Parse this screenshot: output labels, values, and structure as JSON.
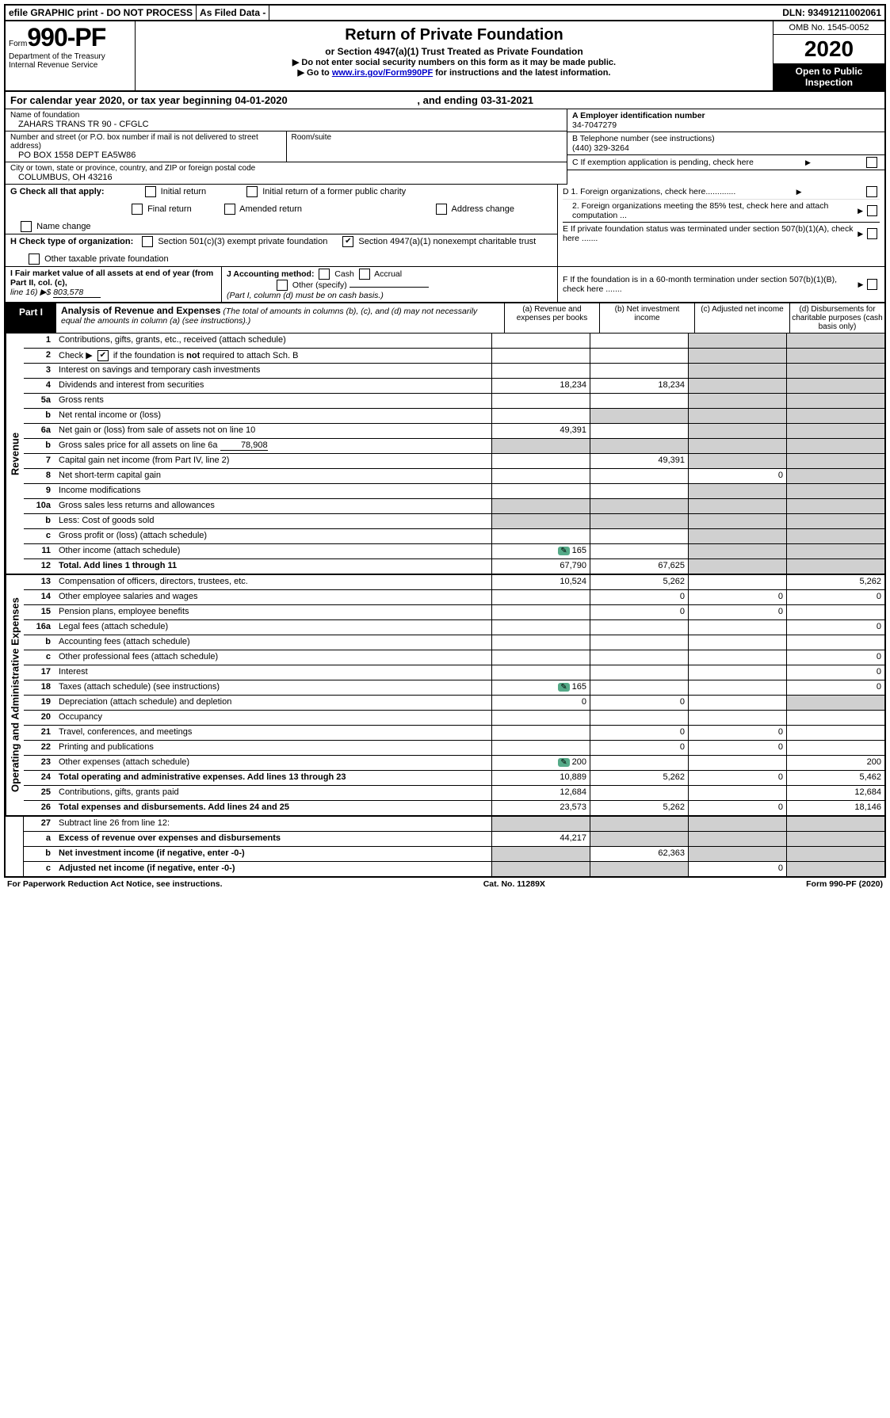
{
  "topbar": {
    "efile": "efile GRAPHIC print - DO NOT PROCESS",
    "asfiled": "As Filed Data -",
    "dln": "DLN: 93491211002061"
  },
  "header": {
    "form_prefix": "Form",
    "form_no": "990-PF",
    "dept": "Department of the Treasury",
    "irs": "Internal Revenue Service",
    "title": "Return of Private Foundation",
    "subtitle": "or Section 4947(a)(1) Trust Treated as Private Foundation",
    "line1": "▶ Do not enter social security numbers on this form as it may be made public.",
    "line2_pre": "▶ Go to ",
    "line2_link": "www.irs.gov/Form990PF",
    "line2_post": " for instructions and the latest information.",
    "omb": "OMB No. 1545-0052",
    "year": "2020",
    "open": "Open to Public Inspection"
  },
  "cal": {
    "pre": "For calendar year 2020, or tax year beginning ",
    "begin": "04-01-2020",
    "mid": ", and ending ",
    "end": "03-31-2021"
  },
  "info": {
    "name_label": "Name of foundation",
    "name": "ZAHARS TRANS TR 90 - CFGLC",
    "addr_label": "Number and street (or P.O. box number if mail is not delivered to street address)",
    "addr": "PO BOX 1558 DEPT EA5W86",
    "suite_label": "Room/suite",
    "city_label": "City or town, state or province, country, and ZIP or foreign postal code",
    "city": "COLUMBUS, OH  43216",
    "a_label": "A Employer identification number",
    "a_val": "34-7047279",
    "b_label": "B Telephone number (see instructions)",
    "b_val": "(440) 329-3264",
    "c_label": "C If exemption application is pending, check here",
    "d1": "D 1. Foreign organizations, check here.............",
    "d2": "2. Foreign organizations meeting the 85% test, check here and attach computation ...",
    "e": "E  If private foundation status was terminated under section 507(b)(1)(A), check here .......",
    "f": "F  If the foundation is in a 60-month termination under section 507(b)(1)(B), check here ......."
  },
  "g": {
    "label": "G Check all that apply:",
    "o1": "Initial return",
    "o2": "Initial return of a former public charity",
    "o3": "Final return",
    "o4": "Amended return",
    "o5": "Address change",
    "o6": "Name change"
  },
  "h": {
    "label": "H Check type of organization:",
    "o1": "Section 501(c)(3) exempt private foundation",
    "o2": "Section 4947(a)(1) nonexempt charitable trust",
    "o3": "Other taxable private foundation"
  },
  "i": {
    "label": "I Fair market value of all assets at end of year (from Part II, col. (c),",
    "line16": "line 16) ▶$",
    "val": "803,578"
  },
  "j": {
    "label": "J Accounting method:",
    "cash": "Cash",
    "accrual": "Accrual",
    "other": "Other (specify)",
    "note": "(Part I, column (d) must be on cash basis.)"
  },
  "part1": {
    "label": "Part I",
    "title": "Analysis of Revenue and Expenses",
    "note": "(The total of amounts in columns (b), (c), and (d) may not necessarily equal the amounts in column (a) (see instructions).)",
    "col_a": "(a) Revenue and expenses per books",
    "col_b": "(b) Net investment income",
    "col_c": "(c) Adjusted net income",
    "col_d": "(d) Disbursements for charitable purposes (cash basis only)"
  },
  "sides": {
    "rev": "Revenue",
    "exp": "Operating and Administrative Expenses"
  },
  "rows": {
    "1": {
      "d": "Contributions, gifts, grants, etc., received (attach schedule)"
    },
    "2": {
      "d": "Check ▶ ☑ if the foundation is not required to attach Sch. B"
    },
    "3": {
      "d": "Interest on savings and temporary cash investments"
    },
    "4": {
      "d": "Dividends and interest from securities",
      "a": "18,234",
      "b": "18,234"
    },
    "5a": {
      "d": "Gross rents"
    },
    "5b": {
      "d": "Net rental income or (loss)"
    },
    "6a": {
      "d": "Net gain or (loss) from sale of assets not on line 10",
      "a": "49,391"
    },
    "6b": {
      "d": "Gross sales price for all assets on line 6a",
      "v": "78,908"
    },
    "7": {
      "d": "Capital gain net income (from Part IV, line 2)",
      "b": "49,391"
    },
    "8": {
      "d": "Net short-term capital gain",
      "c": "0"
    },
    "9": {
      "d": "Income modifications"
    },
    "10a": {
      "d": "Gross sales less returns and allowances"
    },
    "10b": {
      "d": "Less: Cost of goods sold"
    },
    "10c": {
      "d": "Gross profit or (loss) (attach schedule)"
    },
    "11": {
      "d": "Other income (attach schedule)",
      "a": "165",
      "icon": true
    },
    "12": {
      "d": "Total. Add lines 1 through 11",
      "a": "67,790",
      "b": "67,625",
      "bold": true
    },
    "13": {
      "d": "Compensation of officers, directors, trustees, etc.",
      "a": "10,524",
      "b": "5,262",
      "d4": "5,262"
    },
    "14": {
      "d": "Other employee salaries and wages",
      "b": "0",
      "c": "0",
      "d4": "0"
    },
    "15": {
      "d": "Pension plans, employee benefits",
      "b": "0",
      "c": "0"
    },
    "16a": {
      "d": "Legal fees (attach schedule)",
      "d4": "0"
    },
    "16b": {
      "d": "Accounting fees (attach schedule)"
    },
    "16c": {
      "d": "Other professional fees (attach schedule)",
      "d4": "0"
    },
    "17": {
      "d": "Interest",
      "d4": "0"
    },
    "18": {
      "d": "Taxes (attach schedule) (see instructions)",
      "a": "165",
      "icon": true,
      "d4": "0"
    },
    "19": {
      "d": "Depreciation (attach schedule) and depletion",
      "a": "0",
      "b": "0"
    },
    "20": {
      "d": "Occupancy"
    },
    "21": {
      "d": "Travel, conferences, and meetings",
      "b": "0",
      "c": "0"
    },
    "22": {
      "d": "Printing and publications",
      "b": "0",
      "c": "0"
    },
    "23": {
      "d": "Other expenses (attach schedule)",
      "a": "200",
      "icon": true,
      "d4": "200"
    },
    "24": {
      "d": "Total operating and administrative expenses. Add lines 13 through 23",
      "a": "10,889",
      "b": "5,262",
      "c": "0",
      "d4": "5,462",
      "bold": true
    },
    "25": {
      "d": "Contributions, gifts, grants paid",
      "a": "12,684",
      "d4": "12,684"
    },
    "26": {
      "d": "Total expenses and disbursements. Add lines 24 and 25",
      "a": "23,573",
      "b": "5,262",
      "c": "0",
      "d4": "18,146",
      "bold": true
    },
    "27": {
      "d": "Subtract line 26 from line 12:"
    },
    "27a": {
      "d": "Excess of revenue over expenses and disbursements",
      "a": "44,217",
      "bold": true
    },
    "27b": {
      "d": "Net investment income (if negative, enter -0-)",
      "b": "62,363",
      "bold": true
    },
    "27c": {
      "d": "Adjusted net income (if negative, enter -0-)",
      "c": "0",
      "bold": true
    }
  },
  "footer": {
    "left": "For Paperwork Reduction Act Notice, see instructions.",
    "mid": "Cat. No. 11289X",
    "right": "Form 990-PF (2020)"
  }
}
